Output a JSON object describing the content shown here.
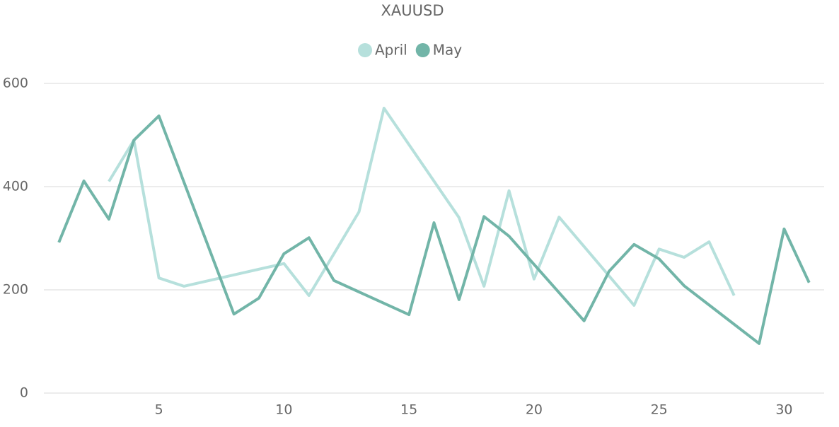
{
  "chart_data": {
    "type": "line",
    "title": "XAUUSD",
    "series": [
      {
        "name": "April",
        "color": "#b6e0dc",
        "x": [
          3,
          4,
          5,
          6,
          10,
          11,
          13,
          14,
          17,
          18,
          19,
          20,
          21,
          24,
          25,
          26,
          27,
          28
        ],
        "values": [
          410,
          490,
          223,
          207,
          251,
          189,
          351,
          552,
          340,
          207,
          392,
          221,
          341,
          170,
          279,
          263,
          293,
          189
        ]
      },
      {
        "name": "May",
        "color": "#72b5a8",
        "x": [
          1,
          2,
          3,
          4,
          5,
          8,
          9,
          10,
          11,
          12,
          15,
          16,
          17,
          18,
          19,
          22,
          23,
          24,
          25,
          26,
          29,
          30,
          31
        ],
        "values": [
          292,
          411,
          337,
          490,
          537,
          153,
          184,
          270,
          301,
          218,
          152,
          330,
          181,
          342,
          304,
          140,
          236,
          288,
          260,
          208,
          96,
          318,
          214
        ]
      }
    ],
    "xlim": [
      0.4,
      31.6
    ],
    "xticks": [
      5,
      10,
      15,
      20,
      25,
      30
    ],
    "ylim": [
      0,
      600
    ],
    "yticks": [
      0,
      200,
      400,
      600
    ],
    "grid": true
  }
}
